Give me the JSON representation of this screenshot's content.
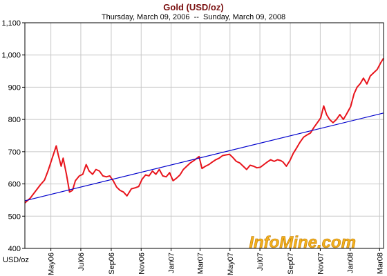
{
  "chart_data": {
    "type": "line",
    "title": "Gold (USD/oz)",
    "subtitle": "Thursday, March 09, 2006  --  Sunday, March 09, 2008",
    "ylabel": "USD/oz",
    "xlabel": "",
    "ylim": [
      400,
      1100
    ],
    "yticks": [
      400,
      500,
      600,
      700,
      800,
      900,
      1000,
      1100
    ],
    "ytick_labels": [
      "400",
      "500",
      "600",
      "700",
      "800",
      "900",
      "1,000",
      "1,100"
    ],
    "xlim": [
      "2006-03-09",
      "2008-03-09"
    ],
    "xticks": [
      {
        "date": "2006-05-01",
        "label": "May06"
      },
      {
        "date": "2006-07-01",
        "label": "Jul06"
      },
      {
        "date": "2006-09-01",
        "label": "Sep06"
      },
      {
        "date": "2006-11-01",
        "label": "Nov06"
      },
      {
        "date": "2007-01-01",
        "label": "Jan07"
      },
      {
        "date": "2007-03-01",
        "label": "Mar07"
      },
      {
        "date": "2007-05-01",
        "label": "May07"
      },
      {
        "date": "2007-07-01",
        "label": "Jul07"
      },
      {
        "date": "2007-09-01",
        "label": "Sep07"
      },
      {
        "date": "2007-11-01",
        "label": "Nov07"
      },
      {
        "date": "2008-01-01",
        "label": "Jan08"
      },
      {
        "date": "2008-03-01",
        "label": "Mar08"
      }
    ],
    "grid": true,
    "series": [
      {
        "color": "#e8141c",
        "x": [
          "2006-03-09",
          "2006-03-20",
          "2006-04-01",
          "2006-04-10",
          "2006-04-18",
          "2006-04-25",
          "2006-05-02",
          "2006-05-08",
          "2006-05-12",
          "2006-05-16",
          "2006-05-22",
          "2006-05-26",
          "2006-06-02",
          "2006-06-08",
          "2006-06-14",
          "2006-06-20",
          "2006-06-28",
          "2006-07-05",
          "2006-07-12",
          "2006-07-18",
          "2006-07-25",
          "2006-08-01",
          "2006-08-08",
          "2006-08-15",
          "2006-08-22",
          "2006-08-29",
          "2006-09-05",
          "2006-09-12",
          "2006-09-19",
          "2006-09-26",
          "2006-10-03",
          "2006-10-06",
          "2006-10-12",
          "2006-10-20",
          "2006-10-27",
          "2006-11-03",
          "2006-11-10",
          "2006-11-17",
          "2006-11-24",
          "2006-12-01",
          "2006-12-08",
          "2006-12-15",
          "2006-12-22",
          "2006-12-29",
          "2007-01-05",
          "2007-01-12",
          "2007-01-19",
          "2007-01-26",
          "2007-02-02",
          "2007-02-09",
          "2007-02-16",
          "2007-02-23",
          "2007-02-27",
          "2007-03-05",
          "2007-03-12",
          "2007-03-19",
          "2007-03-26",
          "2007-04-02",
          "2007-04-09",
          "2007-04-16",
          "2007-04-23",
          "2007-04-30",
          "2007-05-07",
          "2007-05-14",
          "2007-05-21",
          "2007-05-28",
          "2007-06-04",
          "2007-06-11",
          "2007-06-18",
          "2007-06-25",
          "2007-07-02",
          "2007-07-09",
          "2007-07-16",
          "2007-07-23",
          "2007-07-30",
          "2007-08-06",
          "2007-08-13",
          "2007-08-17",
          "2007-08-24",
          "2007-08-31",
          "2007-09-07",
          "2007-09-14",
          "2007-09-21",
          "2007-09-28",
          "2007-10-05",
          "2007-10-12",
          "2007-10-19",
          "2007-10-26",
          "2007-11-02",
          "2007-11-08",
          "2007-11-14",
          "2007-11-20",
          "2007-11-27",
          "2007-12-04",
          "2007-12-11",
          "2007-12-18",
          "2007-12-24",
          "2008-01-02",
          "2008-01-09",
          "2008-01-15",
          "2008-01-22",
          "2008-01-28",
          "2008-02-04",
          "2008-02-11",
          "2008-02-18",
          "2008-02-25",
          "2008-03-03",
          "2008-03-09"
        ],
        "y": [
          541,
          556,
          580,
          598,
          612,
          640,
          672,
          700,
          718,
          690,
          655,
          680,
          628,
          575,
          580,
          610,
          625,
          630,
          660,
          640,
          630,
          645,
          640,
          625,
          622,
          625,
          610,
          590,
          580,
          575,
          563,
          570,
          585,
          588,
          592,
          615,
          628,
          625,
          640,
          630,
          645,
          625,
          622,
          635,
          610,
          618,
          628,
          645,
          655,
          665,
          672,
          680,
          685,
          648,
          655,
          660,
          668,
          675,
          680,
          688,
          690,
          692,
          682,
          670,
          665,
          655,
          645,
          658,
          655,
          650,
          652,
          660,
          668,
          675,
          670,
          675,
          672,
          668,
          655,
          672,
          695,
          712,
          730,
          745,
          752,
          758,
          775,
          790,
          805,
          842,
          815,
          800,
          790,
          800,
          815,
          800,
          815,
          840,
          880,
          900,
          912,
          928,
          910,
          935,
          945,
          955,
          975,
          990
        ]
      },
      {
        "color": "#0000cc",
        "x": [
          "2006-03-09",
          "2008-03-09"
        ],
        "y": [
          548,
          820
        ]
      }
    ]
  },
  "watermark": "InfoMine.com"
}
